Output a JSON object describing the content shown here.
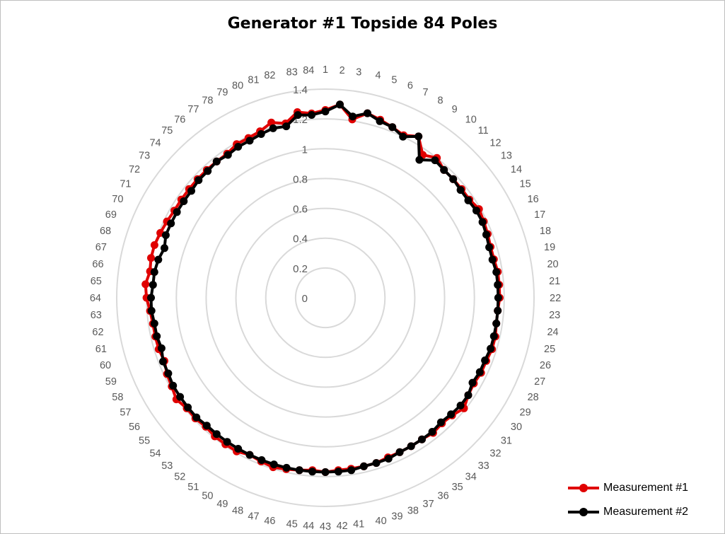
{
  "chart_data": {
    "type": "radar",
    "title": "Generator #1 Topside 84 Poles",
    "categories": [
      "1",
      "2",
      "3",
      "4",
      "5",
      "6",
      "7",
      "8",
      "9",
      "10",
      "11",
      "12",
      "13",
      "14",
      "15",
      "16",
      "17",
      "18",
      "19",
      "20",
      "21",
      "22",
      "23",
      "24",
      "25",
      "26",
      "27",
      "28",
      "29",
      "30",
      "31",
      "32",
      "33",
      "34",
      "35",
      "36",
      "37",
      "38",
      "39",
      "40",
      "41",
      "42",
      "43",
      "44",
      "45",
      "46",
      "47",
      "48",
      "49",
      "50",
      "51",
      "52",
      "53",
      "54",
      "55",
      "56",
      "57",
      "58",
      "59",
      "60",
      "61",
      "62",
      "63",
      "64",
      "65",
      "66",
      "67",
      "68",
      "69",
      "70",
      "71",
      "72",
      "73",
      "74",
      "75",
      "76",
      "77",
      "78",
      "79",
      "80",
      "81",
      "82",
      "83",
      "84"
    ],
    "rlim": [
      0,
      1.4
    ],
    "ticks": [
      "0",
      "0.2",
      "0.4",
      "0.6",
      "0.8",
      "1",
      "1.2",
      "1.4"
    ],
    "grid": true,
    "legend_position": "bottom-right",
    "series": [
      {
        "name": "Measurement #1",
        "color": "#e00000",
        "values": [
          1.26,
          1.3,
          1.21,
          1.27,
          1.25,
          1.23,
          1.21,
          1.25,
          1.16,
          1.2,
          1.17,
          1.17,
          1.17,
          1.17,
          1.19,
          1.18,
          1.17,
          1.16,
          1.16,
          1.17,
          1.17,
          1.17,
          1.16,
          1.16,
          1.17,
          1.17,
          1.16,
          1.16,
          1.15,
          1.16,
          1.19,
          1.16,
          1.15,
          1.16,
          1.15,
          1.15,
          1.15,
          1.15,
          1.16,
          1.16,
          1.16,
          1.16,
          1.17,
          1.16,
          1.17,
          1.18,
          1.19,
          1.18,
          1.17,
          1.19,
          1.19,
          1.19,
          1.18,
          1.19,
          1.19,
          1.21,
          1.19,
          1.18,
          1.16,
          1.17,
          1.17,
          1.17,
          1.18,
          1.2,
          1.21,
          1.19,
          1.2,
          1.2,
          1.19,
          1.18,
          1.17,
          1.17,
          1.17,
          1.17,
          1.17,
          1.17,
          1.17,
          1.19,
          1.19,
          1.2,
          1.23,
          1.2,
          1.26,
          1.24
        ]
      },
      {
        "name": "Measurement #2",
        "color": "#000000",
        "values": [
          1.25,
          1.3,
          1.23,
          1.27,
          1.24,
          1.23,
          1.2,
          1.25,
          1.12,
          1.18,
          1.17,
          1.17,
          1.16,
          1.16,
          1.17,
          1.17,
          1.16,
          1.15,
          1.15,
          1.16,
          1.16,
          1.16,
          1.16,
          1.16,
          1.16,
          1.16,
          1.15,
          1.15,
          1.14,
          1.16,
          1.16,
          1.15,
          1.14,
          1.15,
          1.15,
          1.15,
          1.15,
          1.16,
          1.16,
          1.16,
          1.17,
          1.17,
          1.17,
          1.17,
          1.17,
          1.17,
          1.17,
          1.17,
          1.17,
          1.17,
          1.17,
          1.17,
          1.17,
          1.18,
          1.18,
          1.18,
          1.18,
          1.17,
          1.17,
          1.15,
          1.16,
          1.16,
          1.17,
          1.17,
          1.16,
          1.16,
          1.15,
          1.13,
          1.15,
          1.15,
          1.15,
          1.15,
          1.15,
          1.16,
          1.16,
          1.17,
          1.16,
          1.17,
          1.17,
          1.18,
          1.19,
          1.18,
          1.24,
          1.23
        ]
      }
    ]
  }
}
